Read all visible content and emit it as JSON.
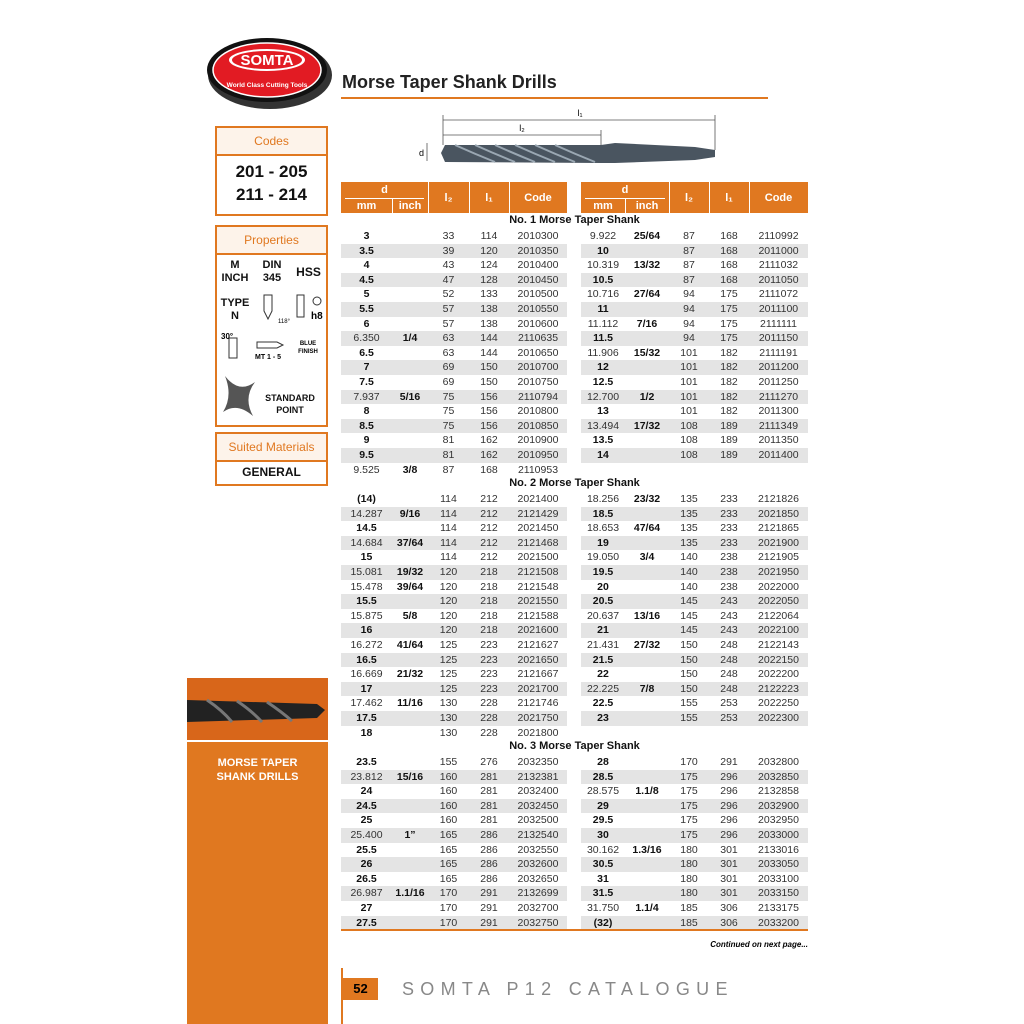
{
  "logo": {
    "name": "SOMTA",
    "tagline": "World Class Cutting Tools"
  },
  "title": "Morse Taper Shank Drills",
  "diagram": {
    "l1": "l₁",
    "l2": "l₂",
    "d": "d"
  },
  "codes": {
    "heading": "Codes",
    "lines": [
      "201 - 205",
      "211 - 214"
    ]
  },
  "properties": {
    "heading": "Properties",
    "m": "M",
    "inch": "INCH",
    "din": "DIN",
    "din_no": "345",
    "hss": "HSS",
    "type": "TYPE",
    "type_n": "N",
    "angle": "118°",
    "tolerance": "h8",
    "taper_angle": "30°",
    "shank": "MT 1 - 5",
    "finish1": "BLUE",
    "finish2": "FINISH",
    "point1": "STANDARD",
    "point2": "POINT"
  },
  "materials": {
    "heading": "Suited Materials",
    "value": "GENERAL"
  },
  "side_label": [
    "MORSE TAPER",
    "SHANK DRILLS"
  ],
  "table": {
    "headers": {
      "d": "d",
      "mm": "mm",
      "inch": "inch",
      "l2": "l₂",
      "l1": "l₁",
      "code": "Code"
    },
    "sections": [
      {
        "title": "No. 1 Morse Taper Shank",
        "left": [
          {
            "mm": "3",
            "l2": "33",
            "l1": "114",
            "code": "2010300"
          },
          {
            "mm": "3.5",
            "l2": "39",
            "l1": "120",
            "code": "2010350"
          },
          {
            "mm": "4",
            "l2": "43",
            "l1": "124",
            "code": "2010400"
          },
          {
            "mm": "4.5",
            "l2": "47",
            "l1": "128",
            "code": "2010450"
          },
          {
            "mm": "5",
            "l2": "52",
            "l1": "133",
            "code": "2010500"
          },
          {
            "mm": "5.5",
            "l2": "57",
            "l1": "138",
            "code": "2010550"
          },
          {
            "mm": "6",
            "l2": "57",
            "l1": "138",
            "code": "2010600"
          },
          {
            "mm": "6.350",
            "inch": "1/4",
            "l2": "63",
            "l1": "144",
            "code": "2110635"
          },
          {
            "mm": "6.5",
            "l2": "63",
            "l1": "144",
            "code": "2010650"
          },
          {
            "mm": "7",
            "l2": "69",
            "l1": "150",
            "code": "2010700"
          },
          {
            "mm": "7.5",
            "l2": "69",
            "l1": "150",
            "code": "2010750"
          },
          {
            "mm": "7.937",
            "inch": "5/16",
            "l2": "75",
            "l1": "156",
            "code": "2110794"
          },
          {
            "mm": "8",
            "l2": "75",
            "l1": "156",
            "code": "2010800"
          },
          {
            "mm": "8.5",
            "l2": "75",
            "l1": "156",
            "code": "2010850"
          },
          {
            "mm": "9",
            "l2": "81",
            "l1": "162",
            "code": "2010900"
          },
          {
            "mm": "9.5",
            "l2": "81",
            "l1": "162",
            "code": "2010950"
          },
          {
            "mm": "9.525",
            "inch": "3/8",
            "l2": "87",
            "l1": "168",
            "code": "2110953"
          }
        ],
        "right": [
          {
            "mm": "9.922",
            "inch": "25/64",
            "l2": "87",
            "l1": "168",
            "code": "2110992"
          },
          {
            "mm": "10",
            "l2": "87",
            "l1": "168",
            "code": "2011000"
          },
          {
            "mm": "10.319",
            "inch": "13/32",
            "l2": "87",
            "l1": "168",
            "code": "2111032"
          },
          {
            "mm": "10.5",
            "l2": "87",
            "l1": "168",
            "code": "2011050"
          },
          {
            "mm": "10.716",
            "inch": "27/64",
            "l2": "94",
            "l1": "175",
            "code": "2111072"
          },
          {
            "mm": "11",
            "l2": "94",
            "l1": "175",
            "code": "2011100"
          },
          {
            "mm": "11.112",
            "inch": "7/16",
            "l2": "94",
            "l1": "175",
            "code": "2111111"
          },
          {
            "mm": "11.5",
            "l2": "94",
            "l1": "175",
            "code": "2011150"
          },
          {
            "mm": "11.906",
            "inch": "15/32",
            "l2": "101",
            "l1": "182",
            "code": "2111191"
          },
          {
            "mm": "12",
            "l2": "101",
            "l1": "182",
            "code": "2011200"
          },
          {
            "mm": "12.5",
            "l2": "101",
            "l1": "182",
            "code": "2011250"
          },
          {
            "mm": "12.700",
            "inch": "1/2",
            "l2": "101",
            "l1": "182",
            "code": "2111270"
          },
          {
            "mm": "13",
            "l2": "101",
            "l1": "182",
            "code": "2011300"
          },
          {
            "mm": "13.494",
            "inch": "17/32",
            "l2": "108",
            "l1": "189",
            "code": "2111349"
          },
          {
            "mm": "13.5",
            "l2": "108",
            "l1": "189",
            "code": "2011350"
          },
          {
            "mm": "14",
            "l2": "108",
            "l1": "189",
            "code": "2011400"
          }
        ]
      },
      {
        "title": "No. 2 Morse Taper Shank",
        "left": [
          {
            "mm": "(14)",
            "l2": "114",
            "l1": "212",
            "code": "2021400"
          },
          {
            "mm": "14.287",
            "inch": "9/16",
            "l2": "114",
            "l1": "212",
            "code": "2121429"
          },
          {
            "mm": "14.5",
            "l2": "114",
            "l1": "212",
            "code": "2021450"
          },
          {
            "mm": "14.684",
            "inch": "37/64",
            "l2": "114",
            "l1": "212",
            "code": "2121468"
          },
          {
            "mm": "15",
            "l2": "114",
            "l1": "212",
            "code": "2021500"
          },
          {
            "mm": "15.081",
            "inch": "19/32",
            "l2": "120",
            "l1": "218",
            "code": "2121508"
          },
          {
            "mm": "15.478",
            "inch": "39/64",
            "l2": "120",
            "l1": "218",
            "code": "2121548"
          },
          {
            "mm": "15.5",
            "l2": "120",
            "l1": "218",
            "code": "2021550"
          },
          {
            "mm": "15.875",
            "inch": "5/8",
            "l2": "120",
            "l1": "218",
            "code": "2121588"
          },
          {
            "mm": "16",
            "l2": "120",
            "l1": "218",
            "code": "2021600"
          },
          {
            "mm": "16.272",
            "inch": "41/64",
            "l2": "125",
            "l1": "223",
            "code": "2121627"
          },
          {
            "mm": "16.5",
            "l2": "125",
            "l1": "223",
            "code": "2021650"
          },
          {
            "mm": "16.669",
            "inch": "21/32",
            "l2": "125",
            "l1": "223",
            "code": "2121667"
          },
          {
            "mm": "17",
            "l2": "125",
            "l1": "223",
            "code": "2021700"
          },
          {
            "mm": "17.462",
            "inch": "11/16",
            "l2": "130",
            "l1": "228",
            "code": "2121746"
          },
          {
            "mm": "17.5",
            "l2": "130",
            "l1": "228",
            "code": "2021750"
          },
          {
            "mm": "18",
            "l2": "130",
            "l1": "228",
            "code": "2021800"
          }
        ],
        "right": [
          {
            "mm": "18.256",
            "inch": "23/32",
            "l2": "135",
            "l1": "233",
            "code": "2121826"
          },
          {
            "mm": "18.5",
            "l2": "135",
            "l1": "233",
            "code": "2021850"
          },
          {
            "mm": "18.653",
            "inch": "47/64",
            "l2": "135",
            "l1": "233",
            "code": "2121865"
          },
          {
            "mm": "19",
            "l2": "135",
            "l1": "233",
            "code": "2021900"
          },
          {
            "mm": "19.050",
            "inch": "3/4",
            "l2": "140",
            "l1": "238",
            "code": "2121905"
          },
          {
            "mm": "19.5",
            "l2": "140",
            "l1": "238",
            "code": "2021950"
          },
          {
            "mm": "20",
            "l2": "140",
            "l1": "238",
            "code": "2022000"
          },
          {
            "mm": "20.5",
            "l2": "145",
            "l1": "243",
            "code": "2022050"
          },
          {
            "mm": "20.637",
            "inch": "13/16",
            "l2": "145",
            "l1": "243",
            "code": "2122064"
          },
          {
            "mm": "21",
            "l2": "145",
            "l1": "243",
            "code": "2022100"
          },
          {
            "mm": "21.431",
            "inch": "27/32",
            "l2": "150",
            "l1": "248",
            "code": "2122143"
          },
          {
            "mm": "21.5",
            "l2": "150",
            "l1": "248",
            "code": "2022150"
          },
          {
            "mm": "22",
            "l2": "150",
            "l1": "248",
            "code": "2022200"
          },
          {
            "mm": "22.225",
            "inch": "7/8",
            "l2": "150",
            "l1": "248",
            "code": "2122223"
          },
          {
            "mm": "22.5",
            "l2": "155",
            "l1": "253",
            "code": "2022250"
          },
          {
            "mm": "23",
            "l2": "155",
            "l1": "253",
            "code": "2022300"
          }
        ]
      },
      {
        "title": "No. 3 Morse Taper Shank",
        "left": [
          {
            "mm": "23.5",
            "l2": "155",
            "l1": "276",
            "code": "2032350"
          },
          {
            "mm": "23.812",
            "inch": "15/16",
            "l2": "160",
            "l1": "281",
            "code": "2132381"
          },
          {
            "mm": "24",
            "l2": "160",
            "l1": "281",
            "code": "2032400"
          },
          {
            "mm": "24.5",
            "l2": "160",
            "l1": "281",
            "code": "2032450"
          },
          {
            "mm": "25",
            "l2": "160",
            "l1": "281",
            "code": "2032500"
          },
          {
            "mm": "25.400",
            "inch": "1”",
            "l2": "165",
            "l1": "286",
            "code": "2132540"
          },
          {
            "mm": "25.5",
            "l2": "165",
            "l1": "286",
            "code": "2032550"
          },
          {
            "mm": "26",
            "l2": "165",
            "l1": "286",
            "code": "2032600"
          },
          {
            "mm": "26.5",
            "l2": "165",
            "l1": "286",
            "code": "2032650"
          },
          {
            "mm": "26.987",
            "inch": "1.1/16",
            "l2": "170",
            "l1": "291",
            "code": "2132699"
          },
          {
            "mm": "27",
            "l2": "170",
            "l1": "291",
            "code": "2032700"
          },
          {
            "mm": "27.5",
            "l2": "170",
            "l1": "291",
            "code": "2032750"
          }
        ],
        "right": [
          {
            "mm": "28",
            "l2": "170",
            "l1": "291",
            "code": "2032800"
          },
          {
            "mm": "28.5",
            "l2": "175",
            "l1": "296",
            "code": "2032850"
          },
          {
            "mm": "28.575",
            "inch": "1.1/8",
            "l2": "175",
            "l1": "296",
            "code": "2132858"
          },
          {
            "mm": "29",
            "l2": "175",
            "l1": "296",
            "code": "2032900"
          },
          {
            "mm": "29.5",
            "l2": "175",
            "l1": "296",
            "code": "2032950"
          },
          {
            "mm": "30",
            "l2": "175",
            "l1": "296",
            "code": "2033000"
          },
          {
            "mm": "30.162",
            "inch": "1.3/16",
            "l2": "180",
            "l1": "301",
            "code": "2133016"
          },
          {
            "mm": "30.5",
            "l2": "180",
            "l1": "301",
            "code": "2033050"
          },
          {
            "mm": "31",
            "l2": "180",
            "l1": "301",
            "code": "2033100"
          },
          {
            "mm": "31.5",
            "l2": "180",
            "l1": "301",
            "code": "2033150"
          },
          {
            "mm": "31.750",
            "inch": "1.1/4",
            "l2": "185",
            "l1": "306",
            "code": "2133175"
          },
          {
            "mm": "(32)",
            "l2": "185",
            "l1": "306",
            "code": "2033200"
          }
        ]
      }
    ]
  },
  "continued": "Continued on next page...",
  "footer": {
    "page": "52",
    "catalogue": "SOMTA P12 CATALOGUE"
  }
}
